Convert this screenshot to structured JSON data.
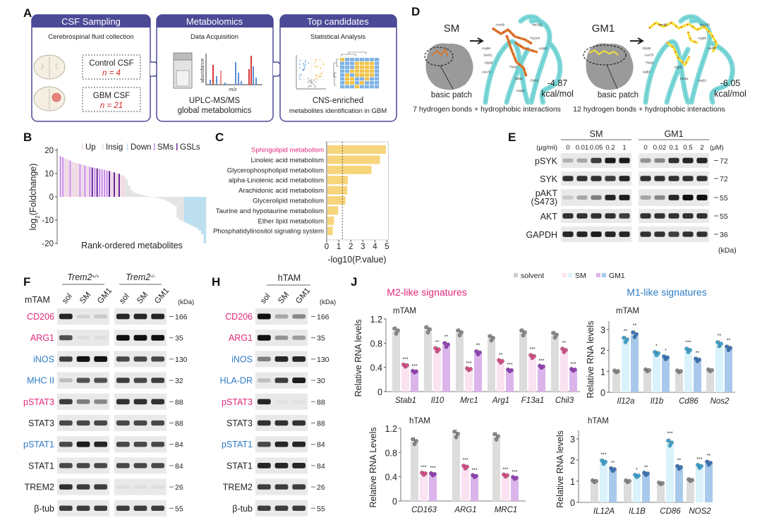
{
  "panelA": {
    "label": "A",
    "steps": [
      {
        "title": "CSF Sampling",
        "subtitle": "Cerebrospinal fluid collection",
        "groups": [
          {
            "name": "Control CSF",
            "n": "n = 4"
          },
          {
            "name": "GBM CSF",
            "n": "n = 21"
          }
        ]
      },
      {
        "title": "Metabolomics",
        "subtitle": "Data Acquisition",
        "axis_y": "abundance",
        "axis_x": "m/z",
        "caption": [
          "UPLC-MS/MS",
          "global metabolomics"
        ]
      },
      {
        "title": "Top candidates",
        "subtitle": "Statistical Analysis",
        "caption": [
          "CNS-enriched",
          "metabolites identification in GBM"
        ]
      }
    ],
    "colors": {
      "header": "#4b4a97",
      "n_text": "#d42a2a"
    }
  },
  "panelD": {
    "label": "D",
    "sm": {
      "name": "SM",
      "patch": "basic patch",
      "energy": "-4.87",
      "unit": "kcal/mol",
      "caption": "7 hydrogen bonds + hydrophobic interactions",
      "residues": [
        "Asn99",
        "His103",
        "Trp104",
        "Arg52",
        "Arg98",
        "Ser81",
        "Gly80",
        "Asn79",
        "Thr82",
        "Val83",
        "Gln61",
        "Arg62"
      ],
      "ligand_color": "#d9782a"
    },
    "gm1": {
      "name": "GM1",
      "patch": "basic patch",
      "energy": "-6.05",
      "unit": "kcal/mol",
      "caption": "12 hydrogen bonds + hydrophobic interactions",
      "residues": [
        "Asn99",
        "His103",
        "Arg90",
        "Ser81",
        "Gly80",
        "Asn79",
        "Thr82",
        "Val83",
        "Arg52",
        "Gln61",
        "Arg62"
      ],
      "ligand_color": "#f2e23a"
    }
  },
  "chart_data": [
    {
      "id": "B",
      "label": "B",
      "type": "bar",
      "title": "",
      "xlabel": "Rank-ordered metabolites",
      "ylabel": {
        "prefix": "log",
        "sub": "2",
        "suffix": "(Foldchange)"
      },
      "ylim": [
        -20,
        20
      ],
      "yticks": [
        "20",
        "10",
        "0",
        "-10",
        "-20"
      ],
      "legend": [
        "Up",
        "Insig",
        "Down",
        "SMs",
        "GSLs"
      ],
      "legend_position": "top-right",
      "colors": {
        "Up": "#f1dbe5",
        "Insig": "#e4e4e4",
        "Down": "#bcdff0",
        "SMs": "#c98ee8",
        "GSLs": "#6a2c9a"
      },
      "values": [
        17.5,
        17,
        16.5,
        16,
        15.5,
        15,
        14.7,
        14.4,
        14.1,
        13.8,
        13.5,
        13.2,
        12.9,
        12.6,
        12.4,
        12.2,
        12.0,
        11.8,
        11.6,
        11.4,
        11.1,
        10.8,
        10.5,
        10.2,
        9.9,
        9.4,
        8.8,
        7.5,
        5,
        3,
        2,
        1.5,
        1.2,
        0.9,
        0.7,
        0.5,
        0.3,
        0.1,
        -0.1,
        -0.3,
        -0.5,
        -0.8,
        -1.1,
        -1.5,
        -2,
        -2.6,
        -3.3,
        -4,
        -9,
        -10,
        -10.5,
        -11,
        -11.5,
        -12,
        -12.5,
        -13,
        -13.5,
        -14.5,
        -16,
        -20
      ],
      "up_count": 27,
      "down_start": 51,
      "sm_indices": [
        0,
        1,
        4,
        8,
        10,
        12,
        14,
        16,
        17,
        18,
        19
      ],
      "gsl_indices": [
        13,
        15,
        20,
        22,
        24
      ]
    },
    {
      "id": "C",
      "label": "C",
      "type": "bar",
      "orientation": "horizontal",
      "xlabel": "-log10(P.value)",
      "xlim": [
        0,
        5
      ],
      "xticks": [
        "0",
        "1",
        "2",
        "3",
        "4",
        "5"
      ],
      "threshold": 1.3,
      "categories": [
        "Sphingolipid metabolism",
        "Linoleic acid metabolism",
        "Glycerophospholipid metabolism",
        "alpha-Linolenic acid metabolism",
        "Arachidonic acid metabolism",
        "Glycerolipid metabolism",
        "Taurine and hypotaurine metabolism",
        "Ether lipid metabolism",
        "Phosphatidylinositol signaling system"
      ],
      "values": [
        4.85,
        4.35,
        3.65,
        1.7,
        1.65,
        1.5,
        0.9,
        0.55,
        0.45
      ],
      "highlight_color": "#e0287a",
      "bar_color": "#f7d57a"
    },
    {
      "id": "J-M2-mTAM",
      "type": "bar",
      "group_title": "M2-like signatures",
      "title": "mTAM",
      "ylabel": "Relative RNA levels",
      "ylim": [
        0,
        1.2
      ],
      "yticks": [
        "0",
        "0.4",
        "0.8",
        "1.2"
      ],
      "categories": [
        "Stab1",
        "Il10",
        "Mrc1",
        "Arg1",
        "F13a1",
        "Chil3"
      ],
      "series": [
        {
          "name": "solvent",
          "values": [
            1.0,
            1.02,
            0.97,
            0.88,
            0.97,
            0.93
          ]
        },
        {
          "name": "SM",
          "values": [
            0.43,
            0.69,
            0.37,
            0.5,
            0.58,
            0.68
          ]
        },
        {
          "name": "GM1",
          "values": [
            0.33,
            0.77,
            0.64,
            0.35,
            0.41,
            0.36
          ]
        }
      ],
      "significance": {
        "SM": [
          "***",
          "**",
          "***",
          "**",
          "***",
          "**"
        ],
        "GM1": [
          "***",
          "**",
          "**",
          "***",
          "***",
          "***"
        ]
      }
    },
    {
      "id": "J-M1-mTAM",
      "type": "bar",
      "group_title": "M1-like signatures",
      "title": "mTAM",
      "ylabel": "Relative RNA levels",
      "ylim": [
        0,
        3.4
      ],
      "yticks": [
        "0",
        "1",
        "2",
        "3"
      ],
      "categories": [
        "Il12a",
        "Il1b",
        "Cd86",
        "Nos2"
      ],
      "series": [
        {
          "name": "solvent",
          "values": [
            1.0,
            1.05,
            1.0,
            1.05
          ]
        },
        {
          "name": "SM",
          "values": [
            2.5,
            1.85,
            2.0,
            2.3
          ]
        },
        {
          "name": "GM1",
          "values": [
            2.75,
            1.65,
            1.55,
            2.1
          ]
        }
      ],
      "significance": {
        "SM": [
          "**",
          "*",
          "***",
          "**"
        ],
        "GM1": [
          "**",
          "*",
          "**",
          "**"
        ]
      }
    },
    {
      "id": "J-M2-hTAM",
      "type": "bar",
      "title": "hTAM",
      "ylabel": "Relative RNA Levels",
      "ylim": [
        0,
        1.2
      ],
      "yticks": [
        "0",
        "0.4",
        "0.8",
        "1.2"
      ],
      "categories": [
        "CD163",
        "ARG1",
        "MRC1"
      ],
      "series": [
        {
          "name": "solvent",
          "values": [
            0.98,
            1.1,
            1.06
          ]
        },
        {
          "name": "SM",
          "values": [
            0.45,
            0.56,
            0.42
          ]
        },
        {
          "name": "GM1",
          "values": [
            0.44,
            0.41,
            0.38
          ]
        }
      ],
      "significance": {
        "SM": [
          "***",
          "***",
          "***"
        ],
        "GM1": [
          "***",
          "***",
          "***"
        ]
      }
    },
    {
      "id": "J-M1-hTAM",
      "type": "bar",
      "title": "hTAM",
      "ylabel": "Relative RNA levels",
      "ylim": [
        0,
        3.4
      ],
      "yticks": [
        "0",
        "1",
        "2",
        "3"
      ],
      "categories": [
        "IL12A",
        "IL1B",
        "CD86",
        "NOS2"
      ],
      "series": [
        {
          "name": "solvent",
          "values": [
            1.0,
            1.0,
            0.9,
            1.05
          ]
        },
        {
          "name": "SM",
          "values": [
            1.9,
            1.25,
            2.8,
            1.7
          ]
        },
        {
          "name": "GM1",
          "values": [
            1.55,
            1.35,
            1.65,
            1.85
          ]
        }
      ],
      "significance": {
        "SM": [
          "***",
          "*",
          "***",
          "***"
        ],
        "GM1": [
          "**",
          "**",
          "**",
          "**"
        ]
      }
    }
  ],
  "panelJ": {
    "label": "J",
    "legend": [
      "solvent",
      "SM",
      "GM1"
    ],
    "m2_title": "M2-like signatures",
    "m1_title": "M1-like signatures",
    "colors": {
      "solvent_bar": "#dcdcdc",
      "solvent_dot": "#8a8a8a",
      "m2_sm_bar": "#fae2f1",
      "m2_sm_dot": "#e0508a",
      "m2_gm1_bar": "#dcb4ec",
      "m2_gm1_dot": "#9b40c0",
      "m1_sm_bar": "#d9f2fb",
      "m1_sm_dot": "#3aa8d8",
      "m1_gm1_bar": "#a9c9ec",
      "m1_gm1_dot": "#3a78c0",
      "m2_title": "#e0287a",
      "m1_title": "#2e7bc4"
    }
  },
  "panelE": {
    "label": "E",
    "groups": [
      {
        "name": "SM",
        "unit": "(µg/ml)",
        "concentrations": [
          "0",
          "0.01",
          "0.05",
          "0.2",
          "1"
        ]
      },
      {
        "name": "GM1",
        "unit": "(µM)",
        "concentrations": [
          "0",
          "0.02",
          "0.1",
          "0.5",
          "2"
        ]
      }
    ],
    "rows": [
      {
        "name": "pSYK",
        "kda": "72",
        "SM": [
          0.25,
          0.3,
          0.8,
          0.95,
          0.95
        ],
        "GM1": [
          0.4,
          0.45,
          0.85,
          0.9,
          0.9
        ]
      },
      {
        "name": "SYK",
        "kda": "72",
        "SM": [
          0.85,
          0.85,
          0.85,
          0.8,
          0.9
        ],
        "GM1": [
          0.85,
          0.85,
          0.85,
          0.85,
          0.85
        ]
      },
      {
        "name": "pAKT",
        "name2": "(S473)",
        "kda": "55",
        "SM": [
          0.15,
          0.3,
          0.5,
          0.9,
          0.95
        ],
        "GM1": [
          0.3,
          0.45,
          0.9,
          1,
          1
        ]
      },
      {
        "name": "AKT",
        "kda": "55",
        "SM": [
          0.85,
          0.85,
          0.85,
          0.85,
          0.8
        ],
        "GM1": [
          0.85,
          0.85,
          0.85,
          0.85,
          0.85
        ]
      },
      {
        "name": "GAPDH",
        "kda": "36",
        "SM": [
          0.9,
          0.9,
          0.95,
          0.9,
          0.9
        ],
        "GM1": [
          0.85,
          0.85,
          0.8,
          0.85,
          0.85
        ]
      }
    ],
    "kda_unit": "(kDa)"
  },
  "panelF": {
    "label": "F",
    "cell": "mTAM",
    "genotypes": [
      {
        "gene": "Trem2",
        "sup": "+/+"
      },
      {
        "gene": "Trem2",
        "sup": "-/-"
      }
    ],
    "lanes": [
      "sol",
      "SM",
      "GM1"
    ],
    "kda_unit": "(kDa)",
    "rows": [
      {
        "name": "CD206",
        "color": "#e0287a",
        "kda": "166",
        "wt": [
          0.9,
          0.1,
          0.15
        ],
        "ko": [
          0.9,
          0.9,
          0.9
        ]
      },
      {
        "name": "ARG1",
        "color": "#e0287a",
        "kda": "35",
        "wt": [
          0.7,
          0.05,
          0.05
        ],
        "ko": [
          1,
          1,
          1
        ]
      },
      {
        "name": "iNOS",
        "color": "#2e7bc4",
        "kda": "130",
        "wt": [
          0.8,
          1,
          1
        ],
        "ko": [
          0.75,
          0.75,
          0.75
        ]
      },
      {
        "name": "MHC II",
        "color": "#2e7bc4",
        "kda": "32",
        "wt": [
          0.2,
          0.7,
          0.7
        ],
        "ko": [
          0.8,
          0.75,
          0.8
        ]
      },
      {
        "name": "pSTAT3",
        "color": "#e0287a",
        "kda": "88",
        "wt": [
          0.8,
          0.5,
          0.45
        ],
        "ko": [
          0.85,
          0.85,
          0.85
        ]
      },
      {
        "name": "STAT3",
        "color": "#222222",
        "kda": "88",
        "wt": [
          0.75,
          0.75,
          0.75
        ],
        "ko": [
          0.75,
          0.75,
          0.75
        ]
      },
      {
        "name": "pSTAT1",
        "color": "#2e7bc4",
        "kda": "84",
        "wt": [
          0.75,
          0.95,
          0.9
        ],
        "ko": [
          0.75,
          0.75,
          0.75
        ]
      },
      {
        "name": "STAT1",
        "color": "#222222",
        "kda": "84",
        "wt": [
          0.75,
          0.75,
          0.75
        ],
        "ko": [
          0.75,
          0.75,
          0.75
        ]
      },
      {
        "name": "TREM2",
        "color": "#222222",
        "kda": "26",
        "wt": [
          0.85,
          0.8,
          0.8
        ],
        "ko": [
          0.05,
          0.05,
          0.05
        ]
      },
      {
        "name": "β-tub",
        "color": "#222222",
        "kda": "55",
        "wt": [
          0.8,
          0.8,
          0.8
        ],
        "ko": [
          0.8,
          0.8,
          0.8
        ]
      }
    ]
  },
  "panelH": {
    "label": "H",
    "cell": "hTAM",
    "lanes": [
      "sol",
      "SM",
      "GM1"
    ],
    "kda_unit": "(kDa)",
    "rows": [
      {
        "name": "CD206",
        "color": "#e0287a",
        "kda": "166",
        "bands": [
          1,
          0.3,
          0.45
        ]
      },
      {
        "name": "ARG1",
        "color": "#e0287a",
        "kda": "35",
        "bands": [
          1,
          0.4,
          0.35
        ]
      },
      {
        "name": "iNOS",
        "color": "#2e7bc4",
        "kda": "130",
        "bands": [
          0.5,
          0.9,
          0.9
        ]
      },
      {
        "name": "HLA-DR",
        "color": "#2e7bc4",
        "kda": "30",
        "bands": [
          0.2,
          0.8,
          0.95
        ]
      },
      {
        "name": "pSTAT3",
        "color": "#e0287a",
        "kda": "88",
        "bands": [
          0.9,
          0.03,
          0.03
        ]
      },
      {
        "name": "STAT3",
        "color": "#222222",
        "kda": "88",
        "bands": [
          0.85,
          0.85,
          0.85
        ]
      },
      {
        "name": "pSTAT1",
        "color": "#2e7bc4",
        "kda": "84",
        "bands": [
          0.75,
          0.9,
          0.9
        ]
      },
      {
        "name": "STAT1",
        "color": "#222222",
        "kda": "84",
        "bands": [
          0.9,
          0.9,
          0.9
        ]
      },
      {
        "name": "TREM2",
        "color": "#222222",
        "kda": "26",
        "bands": [
          0.8,
          0.8,
          0.8
        ]
      },
      {
        "name": "β-tub",
        "color": "#222222",
        "kda": "55",
        "bands": [
          0.8,
          0.8,
          0.8
        ]
      }
    ]
  }
}
